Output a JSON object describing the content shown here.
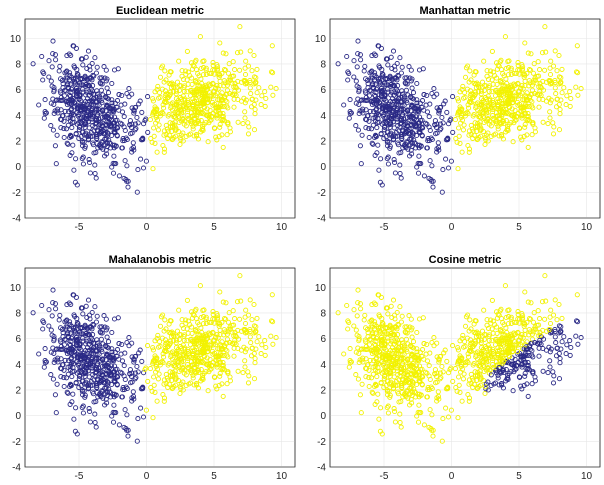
{
  "colors": {
    "class_a": "#2b2a86",
    "class_b": "#f2f200"
  },
  "axes": {
    "xlim": [
      -9,
      11
    ],
    "ylim": [
      -4,
      11.5
    ],
    "xticks": [
      -5,
      0,
      5,
      10
    ],
    "yticks": [
      -4,
      -2,
      0,
      2,
      4,
      6,
      8,
      10
    ]
  },
  "chart_data": [
    {
      "type": "scatter",
      "title": "Euclidean metric",
      "grid": true,
      "series": [
        {
          "cluster_center": [
            -4.2,
            4.3
          ],
          "spread": [
            1.5,
            2.0
          ],
          "count": 560,
          "color": "#2b2a86",
          "marker": "circle"
        },
        {
          "cluster_center": [
            4.0,
            5.0
          ],
          "spread": [
            2.2,
            1.6
          ],
          "count": 560,
          "color": "#f2f200",
          "marker": "circle"
        }
      ],
      "assignment": "x_split",
      "split_x": 0.2
    },
    {
      "type": "scatter",
      "title": "Manhattan metric",
      "grid": true,
      "series": [
        {
          "cluster_center": [
            -4.2,
            4.3
          ],
          "spread": [
            1.5,
            2.0
          ],
          "count": 560,
          "color": "#2b2a86",
          "marker": "circle"
        },
        {
          "cluster_center": [
            4.0,
            5.0
          ],
          "spread": [
            2.2,
            1.6
          ],
          "count": 560,
          "color": "#f2f200",
          "marker": "circle"
        }
      ],
      "assignment": "x_split",
      "split_x": 0.2
    },
    {
      "type": "scatter",
      "title": "Mahalanobis metric",
      "grid": true,
      "series": [
        {
          "cluster_center": [
            -4.2,
            4.3
          ],
          "spread": [
            1.5,
            2.0
          ],
          "count": 560,
          "color": "#2b2a86",
          "marker": "circle"
        },
        {
          "cluster_center": [
            4.0,
            5.0
          ],
          "spread": [
            2.2,
            1.6
          ],
          "count": 560,
          "color": "#f2f200",
          "marker": "circle"
        }
      ],
      "assignment": "x_split",
      "split_x": -0.2
    },
    {
      "type": "scatter",
      "title": "Cosine metric",
      "grid": true,
      "series": [
        {
          "cluster_center": [
            -4.2,
            4.3
          ],
          "spread": [
            1.5,
            2.0
          ],
          "count": 560,
          "color": "#2b2a86",
          "marker": "circle"
        },
        {
          "cluster_center": [
            4.0,
            5.0
          ],
          "spread": [
            2.2,
            1.6
          ],
          "count": 560,
          "color": "#f2f200",
          "marker": "circle"
        }
      ],
      "assignment": "angle_split",
      "split_slope": 0.75
    }
  ]
}
